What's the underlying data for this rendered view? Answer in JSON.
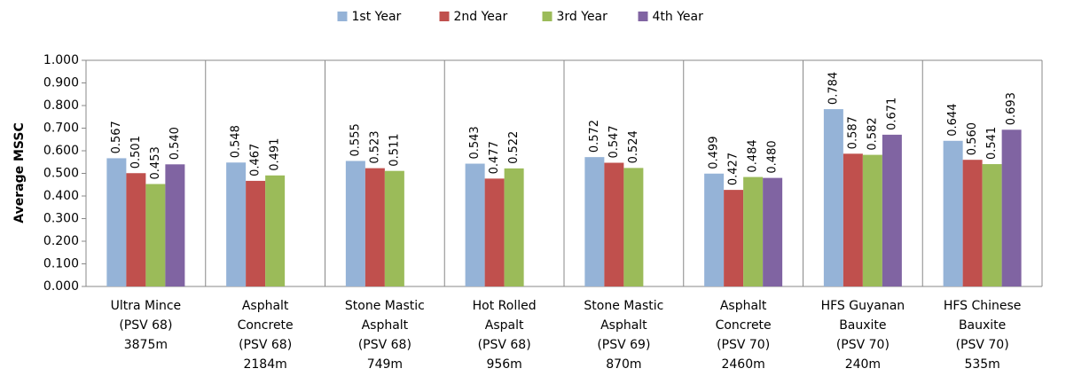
{
  "chart_data": {
    "type": "bar",
    "y_label": "Average MSSC",
    "categories": [
      [
        "Ultra Mince",
        "(PSV 68)",
        "3875m"
      ],
      [
        "Asphalt",
        "Concrete",
        "(PSV 68)",
        "2184m"
      ],
      [
        "Stone Mastic",
        "Asphalt",
        "(PSV 68)",
        "749m"
      ],
      [
        "Hot Rolled",
        "Aspalt",
        "(PSV 68)",
        "956m"
      ],
      [
        "Stone Mastic",
        "Asphalt",
        "(PSV 69)",
        "870m"
      ],
      [
        "Asphalt",
        "Concrete",
        "(PSV 70)",
        "2460m"
      ],
      [
        "HFS Guyanan",
        "Bauxite",
        "(PSV 70)",
        "240m"
      ],
      [
        "HFS Chinese",
        "Bauxite",
        "(PSV 70)",
        "535m"
      ]
    ],
    "series": [
      {
        "name": "1st Year",
        "color": "#95b3d7",
        "values": [
          0.567,
          0.548,
          0.555,
          0.543,
          0.572,
          0.499,
          0.784,
          0.644
        ],
        "value_labels": [
          "0.567",
          "0.548",
          "0.555",
          "0.543",
          "0.572",
          "0.499",
          "0.784",
          "0.644"
        ]
      },
      {
        "name": "2nd Year",
        "color": "#c0504d",
        "values": [
          0.501,
          0.467,
          0.523,
          0.477,
          0.547,
          0.427,
          0.587,
          0.56
        ],
        "value_labels": [
          "0.501",
          "0.467",
          "0.523",
          "0.477",
          "0.547",
          "0.427",
          "0.587",
          "0.560"
        ]
      },
      {
        "name": "3rd Year",
        "color": "#9bbb59",
        "values": [
          0.453,
          0.491,
          0.511,
          0.522,
          0.524,
          0.484,
          0.582,
          0.541
        ],
        "value_labels": [
          "0.453",
          "0.491",
          "0.511",
          "0.522",
          "0.524",
          "0.484",
          "0.582",
          "0.541"
        ]
      },
      {
        "name": "4th Year",
        "color": "#8064a2",
        "values": [
          0.54,
          null,
          null,
          null,
          null,
          0.48,
          0.671,
          0.693
        ],
        "value_labels": [
          "0.540",
          null,
          null,
          null,
          null,
          "0.480",
          "0.671",
          "0.693"
        ]
      }
    ],
    "ylim": [
      0,
      1
    ],
    "yticks": [
      {
        "value": 0,
        "label": "0.000"
      },
      {
        "value": 0.1,
        "label": "0.100"
      },
      {
        "value": 0.2,
        "label": "0.200"
      },
      {
        "value": 0.3,
        "label": "0.300"
      },
      {
        "value": 0.4,
        "label": "0.400"
      },
      {
        "value": 0.5,
        "label": "0.500"
      },
      {
        "value": 0.6,
        "label": "0.600"
      },
      {
        "value": 0.7,
        "label": "0.700"
      },
      {
        "value": 0.8,
        "label": "0.800"
      },
      {
        "value": 0.9,
        "label": "0.900"
      },
      {
        "value": 1,
        "label": "1.000"
      }
    ],
    "legend": "top"
  }
}
